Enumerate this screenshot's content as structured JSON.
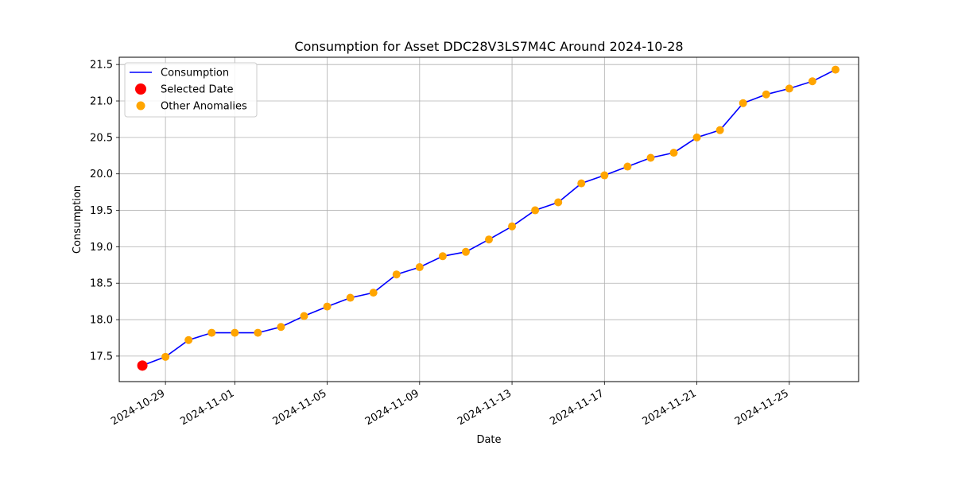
{
  "chart_data": {
    "type": "line",
    "title": "Consumption for Asset DDC28V3LS7M4C Around 2024-10-28",
    "xlabel": "Date",
    "ylabel": "Consumption",
    "xlim": [
      "2024-10-27",
      "2024-11-28"
    ],
    "ylim": [
      17.15,
      21.6
    ],
    "x_ticks": [
      "2024-10-29",
      "2024-11-01",
      "2024-11-05",
      "2024-11-09",
      "2024-11-13",
      "2024-11-17",
      "2024-11-21",
      "2024-11-25"
    ],
    "y_ticks": [
      17.5,
      18.0,
      18.5,
      19.0,
      19.5,
      20.0,
      20.5,
      21.0,
      21.5
    ],
    "y_tick_labels": [
      "17.5",
      "18.0",
      "18.5",
      "19.0",
      "19.5",
      "20.0",
      "20.5",
      "21.0",
      "21.5"
    ],
    "grid": true,
    "legend_position": "top-left",
    "series": [
      {
        "name": "Consumption",
        "kind": "line",
        "color": "#0000ff",
        "x": [
          "2024-10-28",
          "2024-10-29",
          "2024-10-30",
          "2024-10-31",
          "2024-11-01",
          "2024-11-02",
          "2024-11-03",
          "2024-11-04",
          "2024-11-05",
          "2024-11-06",
          "2024-11-07",
          "2024-11-08",
          "2024-11-09",
          "2024-11-10",
          "2024-11-11",
          "2024-11-12",
          "2024-11-13",
          "2024-11-14",
          "2024-11-15",
          "2024-11-16",
          "2024-11-17",
          "2024-11-18",
          "2024-11-19",
          "2024-11-20",
          "2024-11-21",
          "2024-11-22",
          "2024-11-23",
          "2024-11-24",
          "2024-11-25",
          "2024-11-26",
          "2024-11-27"
        ],
        "values": [
          17.37,
          17.49,
          17.72,
          17.82,
          17.82,
          17.82,
          17.9,
          18.05,
          18.18,
          18.3,
          18.37,
          18.62,
          18.72,
          18.87,
          18.93,
          19.1,
          19.28,
          19.5,
          19.61,
          19.87,
          19.98,
          20.1,
          20.22,
          20.29,
          20.5,
          20.6,
          20.97,
          21.09,
          21.17,
          21.27,
          21.43
        ]
      },
      {
        "name": "Selected Date",
        "kind": "scatter",
        "color": "#ff0000",
        "x": [
          "2024-10-28"
        ],
        "values": [
          17.37
        ]
      },
      {
        "name": "Other Anomalies",
        "kind": "scatter",
        "color": "#ffa500",
        "x": [
          "2024-10-29",
          "2024-10-30",
          "2024-10-31",
          "2024-11-01",
          "2024-11-02",
          "2024-11-03",
          "2024-11-04",
          "2024-11-05",
          "2024-11-06",
          "2024-11-07",
          "2024-11-08",
          "2024-11-09",
          "2024-11-10",
          "2024-11-11",
          "2024-11-12",
          "2024-11-13",
          "2024-11-14",
          "2024-11-15",
          "2024-11-16",
          "2024-11-17",
          "2024-11-18",
          "2024-11-19",
          "2024-11-20",
          "2024-11-21",
          "2024-11-22",
          "2024-11-23",
          "2024-11-24",
          "2024-11-25",
          "2024-11-26",
          "2024-11-27"
        ],
        "values": [
          17.49,
          17.72,
          17.82,
          17.82,
          17.82,
          17.9,
          18.05,
          18.18,
          18.3,
          18.37,
          18.62,
          18.72,
          18.87,
          18.93,
          19.1,
          19.28,
          19.5,
          19.61,
          19.87,
          19.98,
          20.1,
          20.22,
          20.29,
          20.5,
          20.6,
          20.97,
          21.09,
          21.17,
          21.27,
          21.43
        ]
      }
    ]
  }
}
